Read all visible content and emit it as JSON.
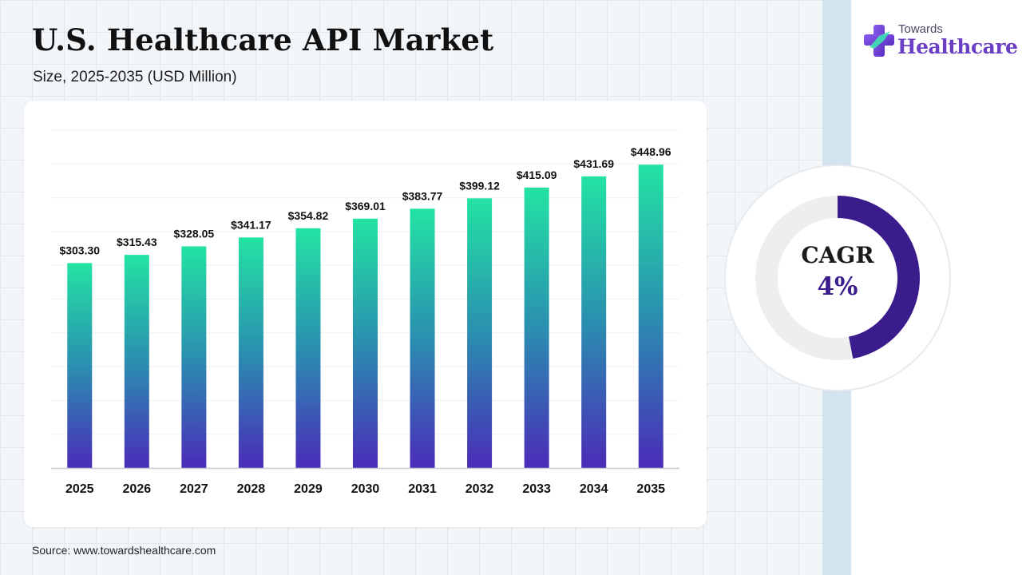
{
  "title": "U.S. Healthcare API Market",
  "subtitle": "Size, 2025-2035 (USD Million)",
  "source": "Source: www.towardshealthcare.com",
  "logo": {
    "top": "Towards",
    "bottom": "Healthcare",
    "icon": "medical-cross-icon"
  },
  "cagr": {
    "label": "CAGR",
    "value": "4%",
    "fraction": 0.47
  },
  "colors": {
    "bar_top": "#23e3a3",
    "bar_mid": "#2a8fb0",
    "bar_bottom": "#4a2cb8",
    "cagr_arc": "#3b1c8c",
    "cagr_track": "#eeeeee",
    "logo_purple": "#6a3fc4"
  },
  "chart_data": {
    "type": "bar",
    "title": "",
    "xlabel": "",
    "ylabel": "",
    "categories": [
      "2025",
      "2026",
      "2027",
      "2028",
      "2029",
      "2030",
      "2031",
      "2032",
      "2033",
      "2034",
      "2035"
    ],
    "values": [
      303.3,
      315.43,
      328.05,
      341.17,
      354.82,
      369.01,
      383.77,
      399.12,
      415.09,
      431.69,
      448.96
    ],
    "labels": [
      "$303.30",
      "$315.43",
      "$328.05",
      "$341.17",
      "$354.82",
      "$369.01",
      "$383.77",
      "$399.12",
      "$415.09",
      "$431.69",
      "$448.96"
    ],
    "ylim": [
      0,
      500
    ],
    "grid": true,
    "legend": "none"
  }
}
